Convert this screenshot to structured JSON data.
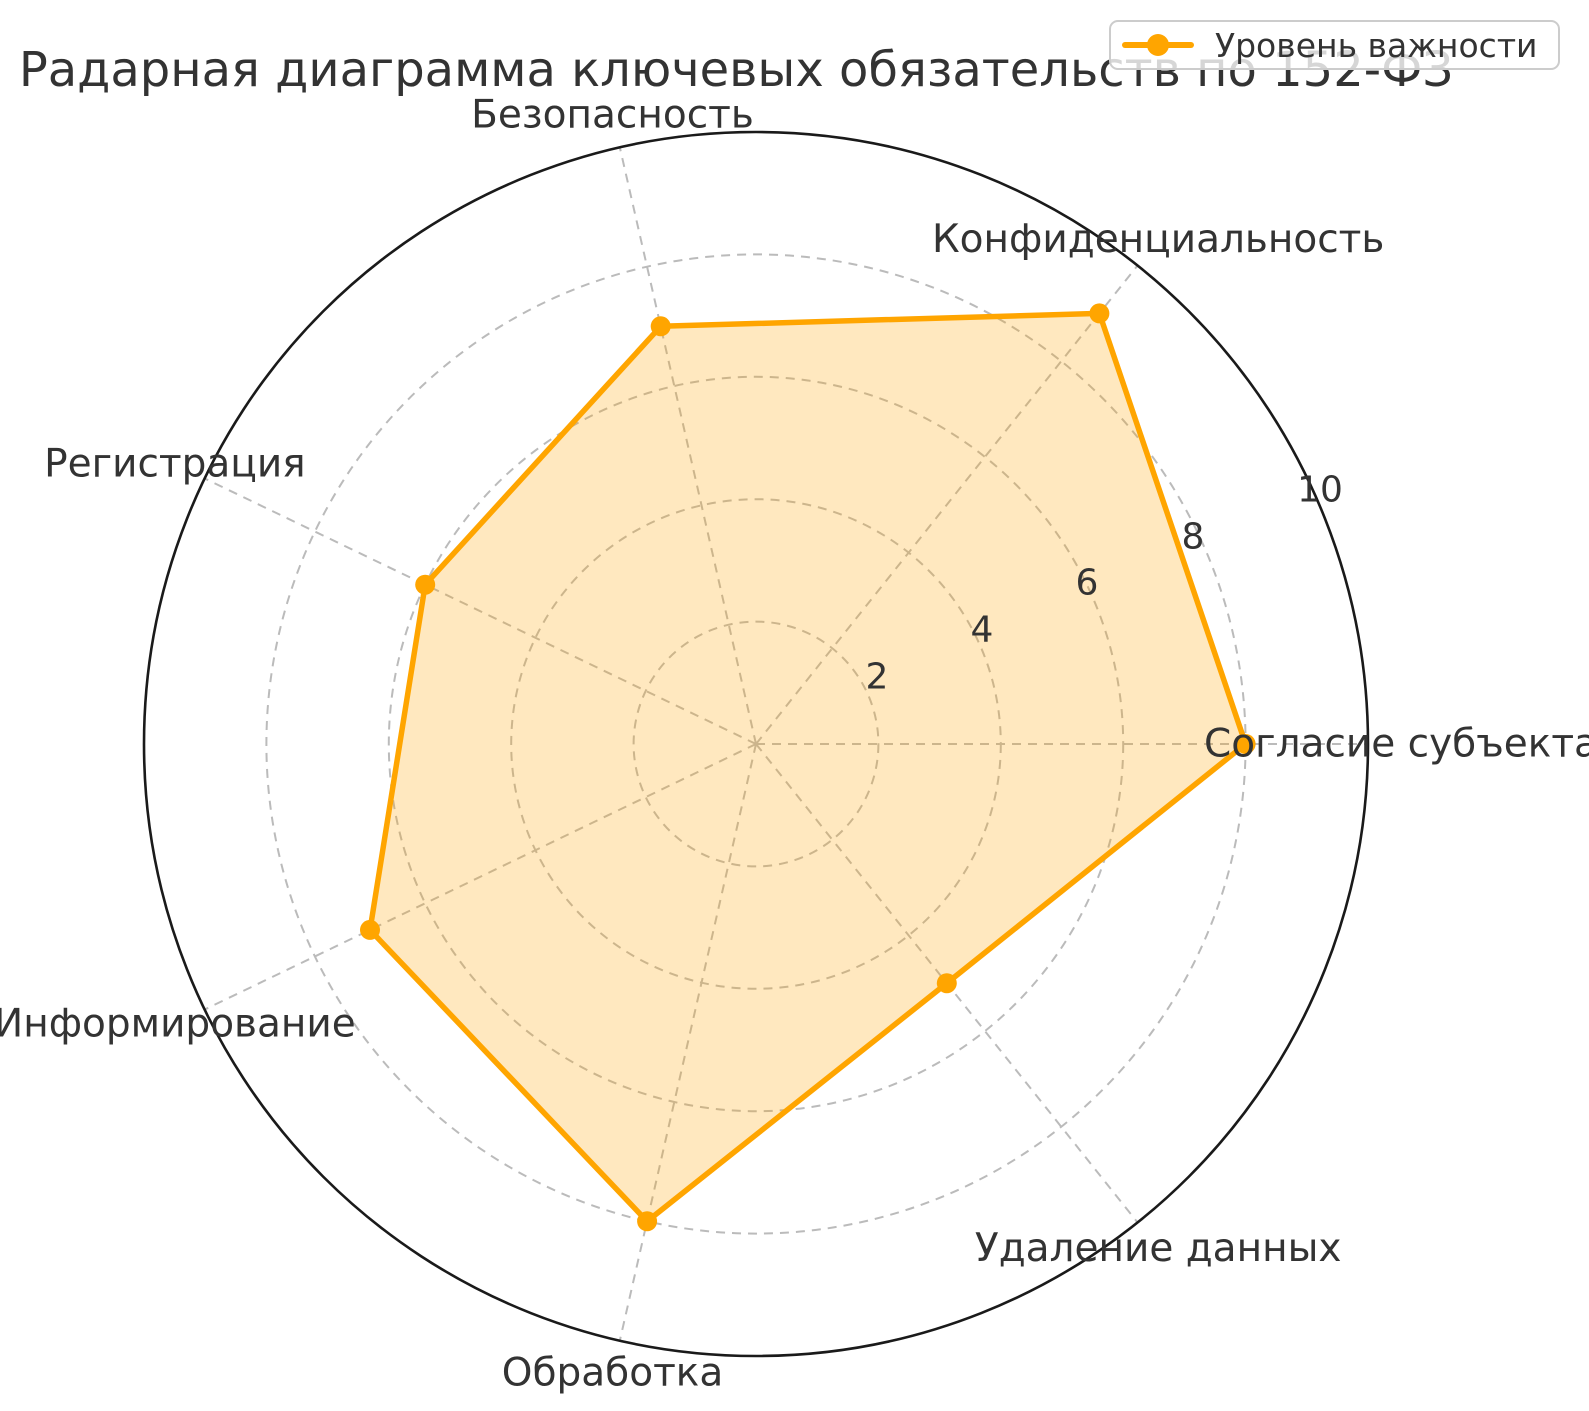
{
  "title": "Радарная диаграмма ключевых обязательств по 152-ФЗ",
  "legend": {
    "label": "Уровень важности"
  },
  "colors": {
    "series": "#FFA500",
    "fill_opacity": 0.25,
    "grid": "#bbbbbb",
    "outer_ring": "#1a1a1a",
    "text": "#333333",
    "legend_border": "#cccccc"
  },
  "chart_data": {
    "type": "radar",
    "categories": [
      "Согласие субъекта",
      "Конфиденциальность",
      "Безопасность",
      "Регистрация",
      "Информирование",
      "Обработка",
      "Удаление данных"
    ],
    "series": [
      {
        "name": "Уровень важности",
        "values": [
          8,
          9,
          7,
          6,
          7,
          8,
          5
        ]
      }
    ],
    "rticks": [
      2,
      4,
      6,
      8,
      10
    ],
    "rmax": 10,
    "start_angle_deg": 0,
    "direction": "counterclockwise",
    "grid": "dashed",
    "legend_position": "upper right"
  }
}
